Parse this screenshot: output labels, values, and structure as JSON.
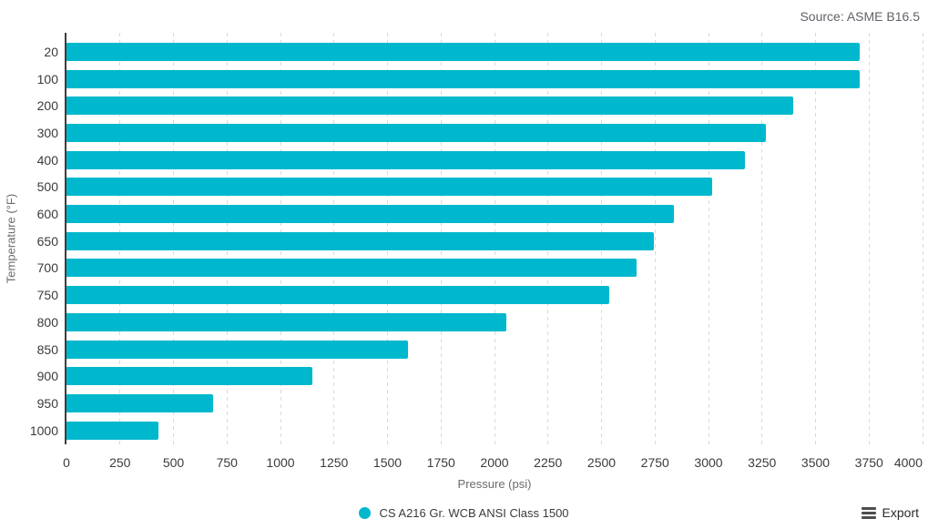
{
  "source_label": "Source: ASME B16.5",
  "export_label": "Export",
  "legend": {
    "label": "CS A216 Gr. WCB ANSI Class 1500"
  },
  "colors": {
    "bar": "#00b8cd",
    "legend_dot": "#00b8cd",
    "gridline": "#d9d9d9",
    "axis_line": "#3d3d3d"
  },
  "chart_data": {
    "type": "bar",
    "orientation": "horizontal",
    "title": "",
    "xlabel": "Pressure (psi)",
    "ylabel": "Temperature (°F)",
    "series_name": "CS A216 Gr. WCB ANSI Class 1500",
    "categories": [
      "20",
      "100",
      "200",
      "300",
      "400",
      "500",
      "600",
      "650",
      "700",
      "750",
      "800",
      "850",
      "900",
      "950",
      "1000"
    ],
    "values": [
      3705,
      3705,
      3395,
      3270,
      3170,
      3015,
      2840,
      2745,
      2665,
      2535,
      2055,
      1595,
      1150,
      685,
      430
    ],
    "xlim": [
      0,
      4000
    ],
    "xticks": [
      0,
      250,
      500,
      750,
      1000,
      1250,
      1500,
      1750,
      2000,
      2250,
      2500,
      2750,
      3000,
      3250,
      3500,
      3750,
      4000
    ],
    "grid": "vertical-dashed",
    "legend_position": "bottom-center"
  }
}
